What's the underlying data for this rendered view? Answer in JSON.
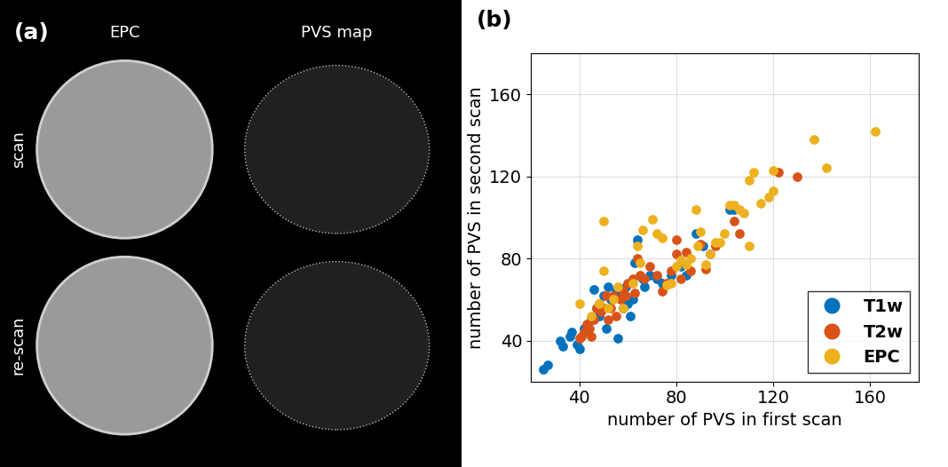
{
  "panel_a": {
    "label": "(a)",
    "columns": [
      "EPC",
      "PVS map"
    ],
    "rows": [
      "scan",
      "re-scan"
    ]
  },
  "chart_data": {
    "type": "scatter",
    "title": "(b)",
    "x_label": "number of PVS in first scan",
    "y_label": "number of PVS in second scan",
    "xlim": [
      20,
      180
    ],
    "ylim": [
      20,
      180
    ],
    "xticks": [
      40,
      80,
      120,
      160
    ],
    "yticks": [
      40,
      80,
      120,
      160
    ],
    "grid": true,
    "legend": "lower right",
    "marker": "o",
    "series": [
      {
        "name": "T1w",
        "color": "#0072BD",
        "x": [
          25,
          27,
          32,
          33,
          36,
          37,
          39,
          40,
          42,
          45,
          46,
          47,
          48,
          50,
          51,
          52,
          53,
          55,
          56,
          57,
          58,
          59,
          60,
          61,
          62,
          63,
          64,
          66,
          67,
          69,
          72,
          74,
          78,
          82,
          84,
          88,
          91,
          94,
          102,
          104
        ],
        "values": [
          26,
          28,
          40,
          37,
          42,
          44,
          38,
          36,
          46,
          50,
          65,
          56,
          52,
          62,
          46,
          66,
          60,
          64,
          41,
          62,
          56,
          66,
          58,
          52,
          60,
          78,
          89,
          70,
          66,
          72,
          70,
          68,
          72,
          76,
          72,
          92,
          86,
          82,
          104,
          104
        ]
      },
      {
        "name": "T2w",
        "color": "#D95319",
        "x": [
          40,
          41,
          42,
          43,
          44,
          45,
          46,
          47,
          48,
          49,
          50,
          51,
          52,
          53,
          54,
          55,
          57,
          58,
          59,
          60,
          62,
          63,
          64,
          65,
          67,
          69,
          72,
          74,
          76,
          78,
          80,
          82,
          84,
          86,
          90,
          92,
          104,
          106,
          122,
          130,
          80,
          96
        ],
        "values": [
          41,
          42,
          44,
          48,
          46,
          42,
          50,
          56,
          58,
          54,
          56,
          62,
          50,
          56,
          62,
          52,
          60,
          64,
          62,
          68,
          70,
          63,
          80,
          72,
          70,
          76,
          72,
          64,
          68,
          74,
          82,
          70,
          83,
          74,
          87,
          75,
          98,
          92,
          122,
          120,
          89,
          86
        ]
      },
      {
        "name": "EPC",
        "color": "#EDB120",
        "x": [
          40,
          45,
          48,
          50,
          50,
          52,
          54,
          56,
          58,
          62,
          64,
          65,
          66,
          70,
          72,
          74,
          76,
          78,
          80,
          82,
          84,
          86,
          88,
          89,
          90,
          92,
          94,
          96,
          98,
          100,
          102,
          104,
          106,
          108,
          110,
          110,
          112,
          115,
          118,
          120,
          120,
          137,
          142,
          162
        ],
        "values": [
          58,
          52,
          58,
          98,
          74,
          56,
          60,
          66,
          56,
          68,
          86,
          78,
          94,
          99,
          92,
          90,
          67,
          68,
          76,
          79,
          77,
          80,
          104,
          86,
          93,
          77,
          82,
          88,
          88,
          92,
          106,
          106,
          104,
          102,
          86,
          118,
          122,
          107,
          110,
          123,
          113,
          138,
          124,
          142
        ]
      }
    ]
  }
}
